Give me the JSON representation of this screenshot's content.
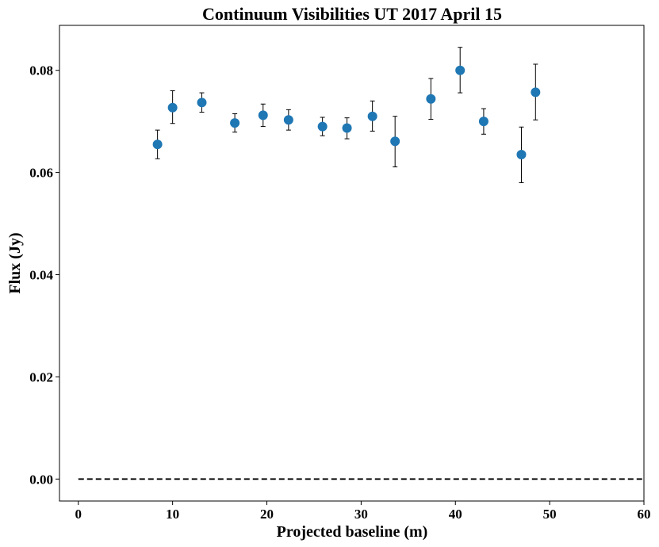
{
  "chart_data": {
    "type": "scatter",
    "title": "Continuum Visibilities UT 2017 April 15",
    "xlabel": "Projected baseline (m)",
    "ylabel": "Flux (Jy)",
    "xlim": [
      -2,
      60
    ],
    "ylim": [
      -0.0043,
      0.0888
    ],
    "xticks": [
      0,
      10,
      20,
      30,
      40,
      50,
      60
    ],
    "xtick_labels": [
      "0",
      "10",
      "20",
      "30",
      "40",
      "50",
      "60"
    ],
    "yticks": [
      0.0,
      0.02,
      0.04,
      0.06,
      0.08
    ],
    "ytick_labels": [
      "0.00",
      "0.02",
      "0.04",
      "0.06",
      "0.08"
    ],
    "grid": false,
    "legend": "none",
    "marker_color": "#1f77b4",
    "errorbar_color": "#000000",
    "series": [
      {
        "x": [
          8.4,
          10.0,
          13.1,
          16.6,
          19.6,
          22.3,
          25.9,
          28.5,
          31.2,
          33.6,
          37.4,
          40.5,
          43.0,
          47.0,
          48.5
        ],
        "y": [
          0.0655,
          0.0727,
          0.0737,
          0.0697,
          0.0712,
          0.0703,
          0.069,
          0.0687,
          0.071,
          0.0661,
          0.0744,
          0.08,
          0.07,
          0.0635,
          0.0757
        ],
        "y_upper": [
          0.0683,
          0.076,
          0.0756,
          0.0715,
          0.0734,
          0.0723,
          0.0708,
          0.0707,
          0.074,
          0.071,
          0.0784,
          0.0845,
          0.0725,
          0.0689,
          0.0812
        ],
        "y_lower": [
          0.0627,
          0.0696,
          0.0718,
          0.0679,
          0.069,
          0.0683,
          0.0672,
          0.0666,
          0.0681,
          0.0611,
          0.0704,
          0.0756,
          0.0675,
          0.058,
          0.0703
        ]
      }
    ],
    "reference_line": {
      "y": 0.0,
      "x_range": [
        0,
        60
      ],
      "style": "dashed",
      "color": "#000000"
    }
  }
}
